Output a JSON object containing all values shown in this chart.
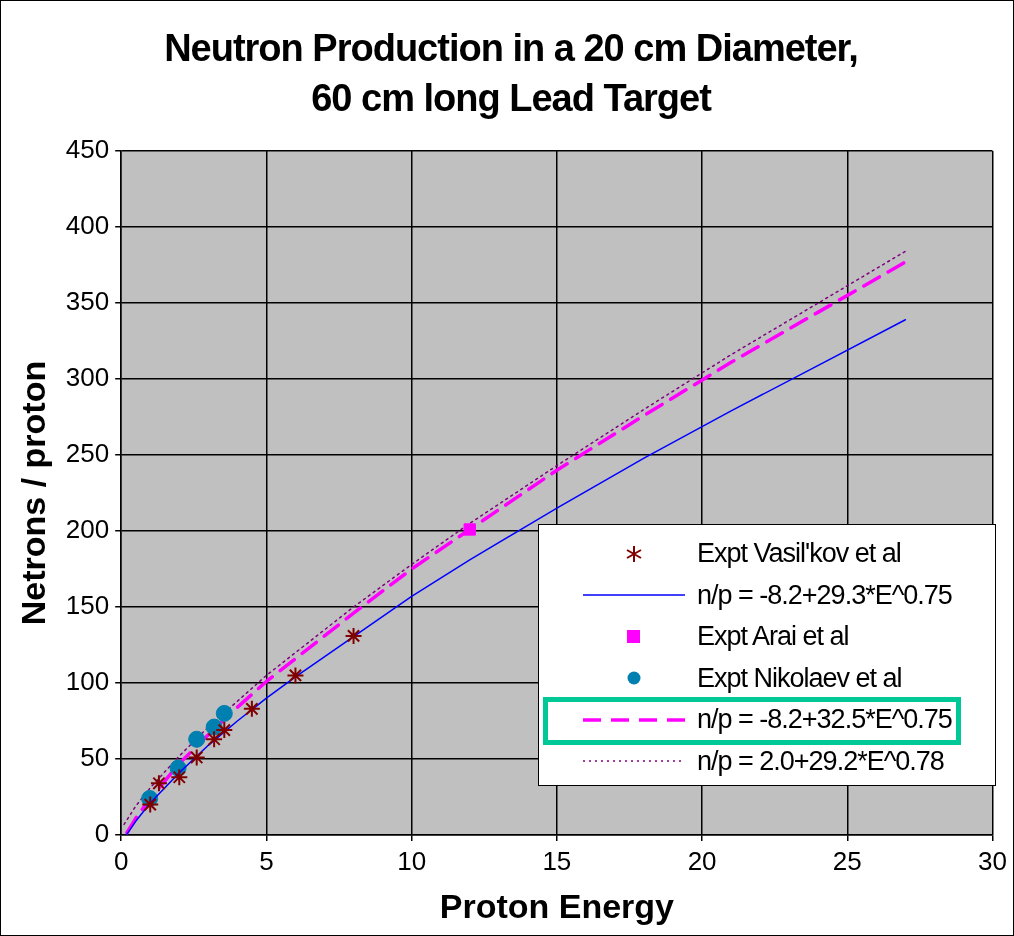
{
  "chart_data": {
    "type": "scatter",
    "title": "Neutron Production in a 20 cm Diameter, 60 cm long Lead Target",
    "xlabel": "Proton Energy",
    "ylabel": "Netrons / proton",
    "xlim": [
      0,
      30
    ],
    "xticks": [
      0,
      5,
      10,
      15,
      20,
      25,
      30
    ],
    "ylim": [
      0,
      450
    ],
    "yticks": [
      0,
      50,
      100,
      150,
      200,
      250,
      300,
      350,
      400,
      450
    ],
    "grid": true,
    "legend": "bottom right",
    "series": [
      {
        "name": "Expt Vasil'kov et al",
        "marker": "cross",
        "color": "#800000",
        "x": [
          1,
          1.3,
          2,
          2.6,
          3.2,
          3.55,
          4.5,
          6,
          8
        ],
        "values": [
          20,
          34,
          38,
          51,
          63,
          69,
          83,
          105,
          131
        ]
      },
      {
        "name": "n/p = -8.2+29.3*E^0.75",
        "type": "line",
        "marker": "none",
        "line_style": "solid",
        "color": "#0000ff",
        "x": [
          0.2,
          0.5,
          1,
          2,
          3,
          4,
          5,
          6,
          10,
          12,
          15,
          18,
          21,
          24,
          27
        ],
        "values": [
          0.6,
          9,
          21,
          41,
          59,
          75,
          90,
          104,
          157,
          181,
          215,
          248,
          279,
          309,
          339
        ]
      },
      {
        "name": "Expt Arai et al",
        "marker": "square",
        "color": "#ff00ff",
        "x": [
          12
        ],
        "values": [
          201
        ]
      },
      {
        "name": "Expt Nikolaev et al",
        "marker": "circle",
        "color": "#0080b0",
        "x": [
          0.98,
          1.96,
          2.6,
          3.2,
          3.55
        ],
        "values": [
          24,
          44,
          63,
          71,
          80
        ]
      },
      {
        "name": "n/p = -8.2+32.5*E^0.75",
        "type": "line",
        "marker": "none",
        "line_style": "dashed",
        "color": "#ff00ff",
        "x": [
          0.2,
          0.5,
          1,
          2,
          3,
          4,
          5,
          6,
          8,
          10,
          12,
          15,
          18,
          21,
          24,
          27
        ],
        "values": [
          1.5,
          11,
          24,
          47,
          66,
          84,
          101,
          116,
          146,
          175,
          201,
          240,
          276,
          311,
          344,
          377
        ]
      },
      {
        "name": "n/p = 2.0+29.2*E^0.78",
        "type": "line",
        "marker": "none",
        "line_style": "dotted",
        "color": "#800080",
        "x": [
          0.1,
          0.5,
          1,
          2,
          3,
          4,
          5,
          6,
          8,
          10,
          12,
          15,
          18,
          21,
          24,
          27
        ],
        "values": [
          7,
          19,
          31,
          52,
          71,
          88,
          105,
          120,
          150,
          178,
          205,
          243,
          280,
          316,
          350,
          384
        ]
      }
    ]
  }
}
